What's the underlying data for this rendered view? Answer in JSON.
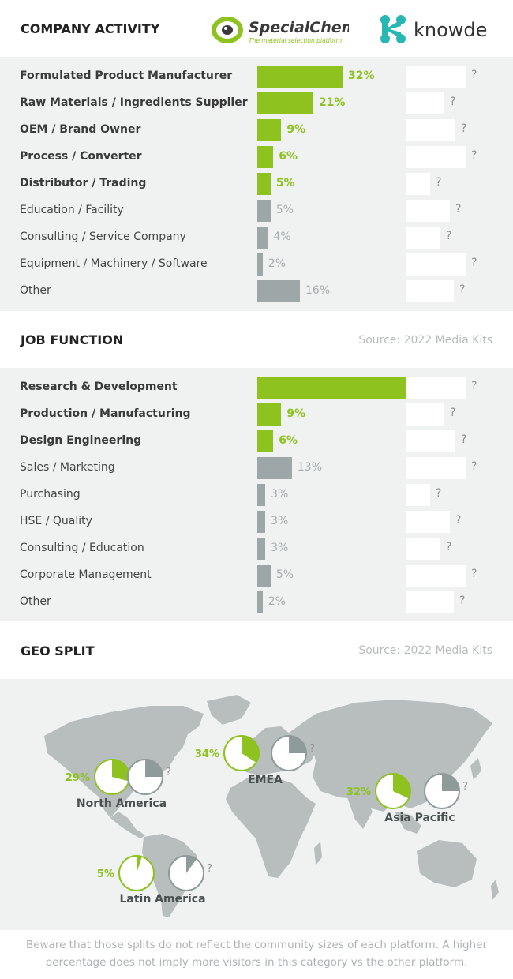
{
  "colors": {
    "green": "#8dc21f",
    "grey": "#9da7a8",
    "pie_gray": "#8f9a9b",
    "panel": "#f0f1f1",
    "map": "#b8bdbe"
  },
  "header": {
    "specialchem": {
      "name": "SpecialChem",
      "tagline": "The material selection platform"
    },
    "knowde": {
      "name": "knowde"
    }
  },
  "sections": {
    "company_activity": {
      "title": "COMPANY ACTIVITY"
    },
    "job_function": {
      "title": "JOB FUNCTION",
      "source": "Source: 2022 Media Kits"
    },
    "geo_split": {
      "title": "GEO SPLIT",
      "source": "Source: 2022 Media Kits"
    }
  },
  "chart_data": [
    {
      "type": "bar",
      "title": "COMPANY ACTIVITY",
      "categories": [
        "Formulated Product Manufacturer",
        "Raw Materials / Ingredients Supplier",
        "OEM / Brand Owner",
        "Process / Converter",
        "Distributor / Trading",
        "Education / Facility",
        "Consulting / Service Company",
        "Equipment / Machinery / Software",
        "Other"
      ],
      "highlight": [
        true,
        true,
        true,
        true,
        true,
        false,
        false,
        false,
        false
      ],
      "series": [
        {
          "name": "SpecialChem",
          "values": [
            32,
            21,
            9,
            6,
            5,
            5,
            4,
            2,
            16
          ],
          "labels": [
            "32%",
            "21%",
            "9%",
            "6%",
            "5%",
            "5%",
            "4%",
            "2%",
            "16%"
          ]
        },
        {
          "name": "knowde",
          "values_shown": [
            "?",
            "?",
            "?",
            "?",
            "?",
            "?",
            "?",
            "?",
            "?"
          ],
          "box_widths": [
            75,
            48,
            62,
            75,
            30,
            55,
            43,
            75,
            60
          ]
        }
      ],
      "unit": "%"
    },
    {
      "type": "bar",
      "title": "JOB FUNCTION",
      "categories": [
        "Research & Development",
        "Production / Manufacturing",
        "Design Engineering",
        "Sales / Marketing",
        "Purchasing",
        "HSE / Quality",
        "Consulting / Education",
        "Corporate Management",
        "Other"
      ],
      "highlight": [
        true,
        true,
        true,
        false,
        false,
        false,
        false,
        false,
        false
      ],
      "series": [
        {
          "name": "SpecialChem",
          "values": [
            56,
            9,
            6,
            13,
            3,
            3,
            3,
            5,
            2
          ],
          "labels": [
            "56%",
            "9%",
            "6%",
            "13%",
            "3%",
            "3%",
            "3%",
            "5%",
            "2%"
          ]
        },
        {
          "name": "knowde",
          "values_shown": [
            "?",
            "?",
            "?",
            "?",
            "?",
            "?",
            "?",
            "?",
            "?"
          ],
          "box_widths": [
            75,
            48,
            62,
            75,
            30,
            55,
            43,
            75,
            60
          ]
        }
      ],
      "unit": "%"
    },
    {
      "type": "pie",
      "title": "GEO SPLIT",
      "regions": [
        {
          "name": "North America",
          "specialchem": 29,
          "specialchem_label": "29%",
          "knowde_label": "?",
          "knowde_placeholder": 25
        },
        {
          "name": "EMEA",
          "specialchem": 34,
          "specialchem_label": "34%",
          "knowde_label": "?",
          "knowde_placeholder": 25
        },
        {
          "name": "Asia Pacific",
          "specialchem": 32,
          "specialchem_label": "32%",
          "knowde_label": "?",
          "knowde_placeholder": 25
        },
        {
          "name": "Latin America",
          "specialchem": 5,
          "specialchem_label": "5%",
          "knowde_label": "?",
          "knowde_placeholder": 10
        }
      ]
    }
  ],
  "footnote": {
    "line1": "Beware that those splits do not reflect the community sizes of each platform. A higher",
    "line2": "percentage does not imply more visitors in this category vs the other platform."
  }
}
